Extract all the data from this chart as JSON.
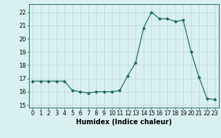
{
  "x": [
    0,
    1,
    2,
    3,
    4,
    5,
    6,
    7,
    8,
    9,
    10,
    11,
    12,
    13,
    14,
    15,
    16,
    17,
    18,
    19,
    20,
    21,
    22,
    23
  ],
  "y": [
    16.8,
    16.8,
    16.8,
    16.8,
    16.8,
    16.1,
    16.0,
    15.9,
    16.0,
    16.0,
    16.0,
    16.1,
    17.2,
    18.2,
    20.8,
    22.0,
    21.5,
    21.5,
    21.3,
    21.4,
    19.0,
    17.1,
    15.5,
    15.4
  ],
  "xlabel": "Humidex (Indice chaleur)",
  "ylim": [
    14.8,
    22.6
  ],
  "yticks": [
    15,
    16,
    17,
    18,
    19,
    20,
    21,
    22
  ],
  "xticks": [
    0,
    1,
    2,
    3,
    4,
    5,
    6,
    7,
    8,
    9,
    10,
    11,
    12,
    13,
    14,
    15,
    16,
    17,
    18,
    19,
    20,
    21,
    22,
    23
  ],
  "line_color": "#1a6b5a",
  "marker": "D",
  "marker_size": 1.8,
  "bg_color": "#d9f0f0",
  "grid_color": "#c0d8d8",
  "xlabel_fontsize": 7.0,
  "tick_fontsize": 6.0,
  "line_width": 0.9
}
